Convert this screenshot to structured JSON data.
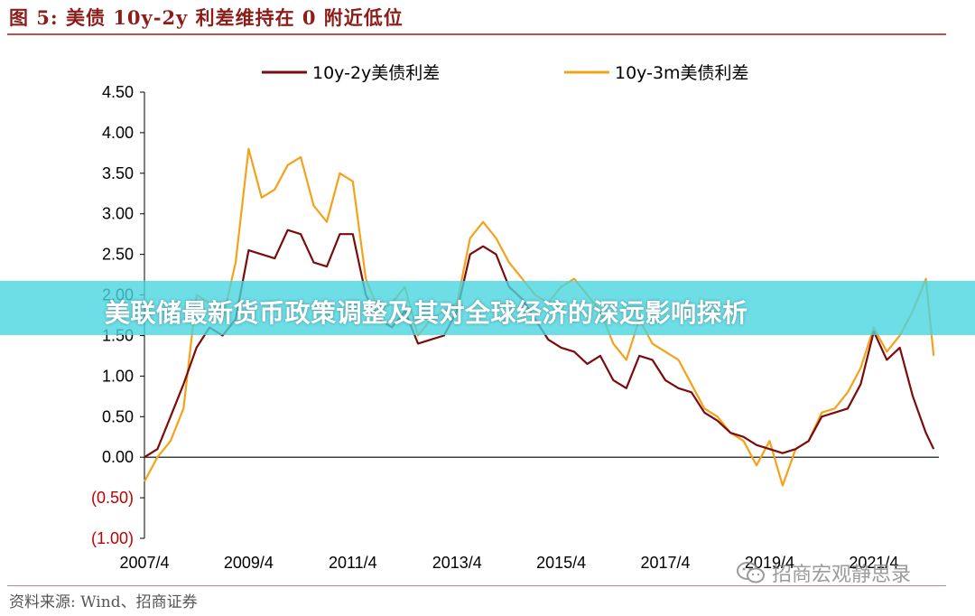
{
  "figure": {
    "title": "图 5:  美债 10y-2y 利差维持在 0 附近低位",
    "source": "资料来源: Wind、招商证券",
    "overlay_banner": "美联储最新货币政策调整及其对全球经济的深远影响探析",
    "watermark": "招商宏观静思录",
    "colors": {
      "title": "#8c1d18",
      "rule": "#c0504d",
      "banner": "#48d4e0"
    }
  },
  "chart_data": {
    "type": "line",
    "title": "",
    "xlabel": "",
    "ylabel": "",
    "ylim": [
      -1.0,
      4.5
    ],
    "yticks": [
      4.5,
      4.0,
      3.5,
      3.0,
      2.5,
      2.0,
      1.5,
      1.0,
      0.5,
      0.0,
      -0.5,
      -1.0
    ],
    "ytick_labels": [
      "4.50",
      "4.00",
      "3.50",
      "3.00",
      "2.50",
      "2.00",
      "1.50",
      "1.00",
      "0.50",
      "0.00",
      "(0.50)",
      "(1.00)"
    ],
    "negative_tick_color": "#c00000",
    "xlim": [
      2007.25,
      2022.5
    ],
    "xticks": [
      2007.25,
      2009.25,
      2011.25,
      2013.25,
      2015.25,
      2017.25,
      2019.25,
      2021.25
    ],
    "xtick_labels": [
      "2007/4",
      "2009/4",
      "2011/4",
      "2013/4",
      "2015/4",
      "2017/4",
      "2019/4",
      "2021/4"
    ],
    "grid": false,
    "legend_position": "top",
    "series": [
      {
        "name": "10y-2y美债利差",
        "color": "#7b0c0c",
        "x": [
          2007.25,
          2007.5,
          2007.75,
          2008.0,
          2008.25,
          2008.5,
          2008.75,
          2009.0,
          2009.25,
          2009.5,
          2009.75,
          2010.0,
          2010.25,
          2010.5,
          2010.75,
          2011.0,
          2011.25,
          2011.5,
          2011.75,
          2012.0,
          2012.25,
          2012.5,
          2012.75,
          2013.0,
          2013.25,
          2013.5,
          2013.75,
          2014.0,
          2014.25,
          2014.5,
          2014.75,
          2015.0,
          2015.25,
          2015.5,
          2015.75,
          2016.0,
          2016.25,
          2016.5,
          2016.75,
          2017.0,
          2017.25,
          2017.5,
          2017.75,
          2018.0,
          2018.25,
          2018.5,
          2018.75,
          2019.0,
          2019.25,
          2019.5,
          2019.75,
          2020.0,
          2020.25,
          2020.5,
          2020.75,
          2021.0,
          2021.25,
          2021.5,
          2021.75,
          2022.0,
          2022.25,
          2022.4
        ],
        "values": [
          0.0,
          0.1,
          0.5,
          0.9,
          1.35,
          1.6,
          1.5,
          1.7,
          2.55,
          2.5,
          2.45,
          2.8,
          2.75,
          2.4,
          2.35,
          2.75,
          2.75,
          2.0,
          1.7,
          1.6,
          1.8,
          1.4,
          1.45,
          1.5,
          1.8,
          2.5,
          2.6,
          2.5,
          2.1,
          1.95,
          1.7,
          1.45,
          1.35,
          1.3,
          1.15,
          1.25,
          0.95,
          0.85,
          1.25,
          1.2,
          0.95,
          0.85,
          0.8,
          0.55,
          0.45,
          0.3,
          0.25,
          0.15,
          0.1,
          0.05,
          0.1,
          0.2,
          0.5,
          0.55,
          0.6,
          0.9,
          1.55,
          1.2,
          1.35,
          0.75,
          0.3,
          0.1
        ]
      },
      {
        "name": "10y-3m美债利差",
        "color": "#f5a21a",
        "x": [
          2007.25,
          2007.5,
          2007.75,
          2008.0,
          2008.25,
          2008.5,
          2008.75,
          2009.0,
          2009.25,
          2009.5,
          2009.75,
          2010.0,
          2010.25,
          2010.5,
          2010.75,
          2011.0,
          2011.25,
          2011.5,
          2011.75,
          2012.0,
          2012.25,
          2012.5,
          2012.75,
          2013.0,
          2013.25,
          2013.5,
          2013.75,
          2014.0,
          2014.25,
          2014.5,
          2014.75,
          2015.0,
          2015.25,
          2015.5,
          2015.75,
          2016.0,
          2016.25,
          2016.5,
          2016.75,
          2017.0,
          2017.25,
          2017.5,
          2017.75,
          2018.0,
          2018.25,
          2018.5,
          2018.75,
          2019.0,
          2019.25,
          2019.5,
          2019.75,
          2020.0,
          2020.25,
          2020.5,
          2020.75,
          2021.0,
          2021.25,
          2021.5,
          2021.75,
          2022.0,
          2022.25,
          2022.4
        ],
        "values": [
          -0.3,
          0.0,
          0.2,
          0.6,
          2.0,
          1.9,
          1.7,
          2.4,
          3.8,
          3.2,
          3.3,
          3.6,
          3.7,
          3.1,
          2.9,
          3.5,
          3.4,
          2.2,
          1.8,
          1.9,
          2.1,
          1.5,
          1.7,
          1.8,
          1.9,
          2.7,
          2.9,
          2.7,
          2.4,
          2.2,
          2.0,
          1.9,
          2.1,
          2.2,
          2.0,
          1.8,
          1.4,
          1.2,
          1.7,
          1.4,
          1.3,
          1.2,
          0.9,
          0.6,
          0.5,
          0.3,
          0.2,
          -0.1,
          0.2,
          -0.35,
          0.1,
          0.2,
          0.55,
          0.6,
          0.8,
          1.1,
          1.6,
          1.3,
          1.5,
          1.8,
          2.2,
          1.25
        ]
      }
    ]
  }
}
